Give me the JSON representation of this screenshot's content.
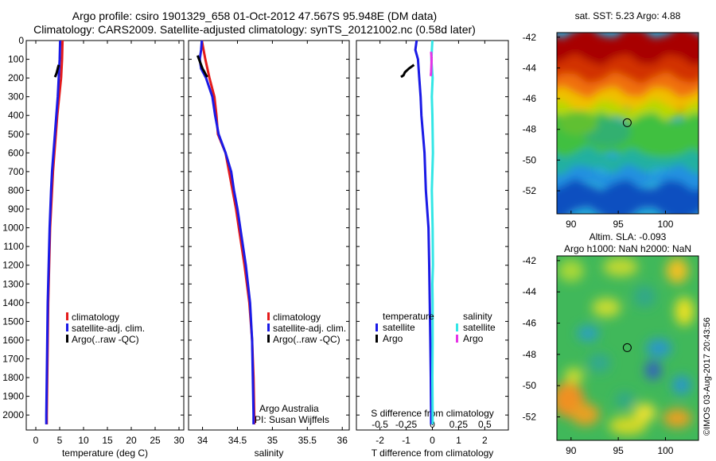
{
  "title_line1": "Argo profile: csiro 1901329_658 01-Oct-2012 47.567S 95.948E (DM data)",
  "title_line2": "Climatology: CARS2009. Satellite-adjusted climatology: synTS_20121002.nc (0.58d later)",
  "map1_title": "sat. SST: 5.23 Argo: 4.88",
  "map2_title1": "Altim. SLA: -0.093",
  "map2_title2": "Argo h1000: NaN h2000: NaN",
  "credit": "©IMOS 03-Aug-2017 20:43:56",
  "note1": "Argo Australia",
  "note2": "PI: Susan Wijffels",
  "colors": {
    "climatology": "#e41b1b",
    "satellite": "#1a1ae6",
    "argo": "#000000",
    "sal_sat": "#33e6e6",
    "sal_argo": "#e633e6"
  },
  "chart_data": [
    {
      "type": "line",
      "xlabel": "temperature (deg C)",
      "ylabel": "",
      "xlim": [
        -2,
        31
      ],
      "ylim": [
        2080,
        0
      ],
      "xticks": [
        0,
        5,
        10,
        15,
        20,
        25,
        30
      ],
      "yticks": [
        0,
        100,
        200,
        300,
        400,
        500,
        600,
        700,
        800,
        900,
        1000,
        1100,
        1200,
        1300,
        1400,
        1500,
        1600,
        1700,
        1800,
        1900,
        2000
      ],
      "legend": [
        "climatology",
        "satellite-adj. clim.",
        "Argo(..raw -QC)"
      ],
      "series": [
        {
          "name": "climatology",
          "color": "#e41b1b",
          "depth": [
            0,
            100,
            200,
            300,
            400,
            500,
            600,
            700,
            800,
            1000,
            1200,
            1400,
            1600,
            1800,
            2000,
            2050
          ],
          "values": [
            5.6,
            5.5,
            5.3,
            4.9,
            4.5,
            4.2,
            3.9,
            3.6,
            3.4,
            3.0,
            2.8,
            2.6,
            2.5,
            2.4,
            2.3,
            2.3
          ]
        },
        {
          "name": "satellite-adj. clim.",
          "color": "#1a1ae6",
          "depth": [
            0,
            100,
            200,
            300,
            400,
            500,
            600,
            700,
            800,
            1000,
            1200,
            1400,
            1600,
            1800,
            2000,
            2050
          ],
          "values": [
            5.1,
            5.0,
            4.8,
            4.6,
            4.3,
            4.0,
            3.7,
            3.4,
            3.2,
            2.9,
            2.7,
            2.5,
            2.4,
            2.3,
            2.2,
            2.2
          ]
        },
        {
          "name": "Argo(..raw -QC)",
          "color": "#000000",
          "depth": [
            130,
            150,
            170,
            185,
            195
          ],
          "values": [
            4.8,
            4.6,
            4.4,
            4.2,
            4.0
          ]
        }
      ]
    },
    {
      "type": "line",
      "xlabel": "salinity",
      "xlim": [
        33.8,
        36.1
      ],
      "ylim": [
        2080,
        0
      ],
      "xticks": [
        34,
        34.5,
        35,
        35.5,
        36
      ],
      "legend": [
        "climatology",
        "satellite-adj. clim.",
        "Argo(..raw -QC)"
      ],
      "series": [
        {
          "name": "climatology",
          "color": "#e41b1b",
          "depth": [
            0,
            100,
            200,
            300,
            400,
            500,
            600,
            700,
            800,
            900,
            1000,
            1200,
            1400,
            1600,
            1800,
            2000,
            2050
          ],
          "values": [
            33.99,
            34.04,
            34.1,
            34.17,
            34.2,
            34.22,
            34.33,
            34.38,
            34.43,
            34.48,
            34.52,
            34.6,
            34.67,
            34.71,
            34.73,
            34.74,
            34.74
          ]
        },
        {
          "name": "satellite-adj. clim.",
          "color": "#1a1ae6",
          "depth": [
            0,
            50,
            100,
            150,
            200,
            300,
            400,
            500,
            600,
            700,
            800,
            900,
            1000,
            1200,
            1400,
            1600,
            1800,
            2000,
            2050
          ],
          "values": [
            33.99,
            33.98,
            33.96,
            33.98,
            34.05,
            34.14,
            34.18,
            34.23,
            34.33,
            34.41,
            34.45,
            34.5,
            34.54,
            34.62,
            34.68,
            34.71,
            34.72,
            34.73,
            34.73
          ]
        },
        {
          "name": "Argo(..raw -QC)",
          "color": "#000000",
          "depth": [
            80,
            100,
            120,
            150,
            170,
            185,
            195
          ],
          "values": [
            33.93,
            33.95,
            33.97,
            34.0,
            34.03,
            34.05,
            34.07
          ]
        }
      ]
    },
    {
      "type": "line",
      "xlabel": "T difference from climatology",
      "x2label": "S difference from climatology",
      "xlim": [
        -2.9,
        2.9
      ],
      "ylim": [
        2080,
        0
      ],
      "xticks": [
        -2,
        -1,
        0,
        1,
        2
      ],
      "x2ticks": [
        "-0.5",
        "-0.25",
        "0",
        "0.25",
        "0.5"
      ],
      "legend_titles": [
        "temperature",
        "salinity"
      ],
      "legend_temp": [
        "satellite",
        "Argo"
      ],
      "legend_sal": [
        "satellite",
        "Argo"
      ],
      "series": [
        {
          "name": "temperature satellite",
          "color": "#1a1ae6",
          "depth": [
            0,
            50,
            100,
            200,
            300,
            400,
            600,
            800,
            1000,
            1200,
            1400,
            1600,
            1800,
            2000,
            2050
          ],
          "values": [
            -0.6,
            -0.65,
            -0.55,
            -0.5,
            -0.45,
            -0.42,
            -0.3,
            -0.25,
            -0.15,
            -0.12,
            -0.1,
            -0.08,
            -0.06,
            -0.05,
            -0.05
          ]
        },
        {
          "name": "salinity satellite",
          "color": "#33e6e6",
          "depth": [
            0,
            100,
            200,
            300,
            400,
            600,
            800,
            1000,
            1200,
            1300,
            1400,
            1600,
            1800,
            2000,
            2050
          ],
          "values": [
            0.0,
            -0.04,
            0.01,
            -0.02,
            0.0,
            0.02,
            -0.02,
            0.01,
            0.02,
            0.0,
            0.01,
            0.01,
            0.0,
            0.01,
            0.01
          ]
        },
        {
          "name": "temperature Argo",
          "color": "#000000",
          "depth": [
            130,
            150,
            170,
            185,
            195
          ],
          "values": [
            -0.7,
            -0.9,
            -1.05,
            -1.1,
            -1.2
          ]
        },
        {
          "name": "salinity Argo",
          "color": "#e633e6",
          "depth": [
            60,
            100,
            140,
            170,
            190
          ],
          "values": [
            -0.05,
            -0.03,
            -0.04,
            -0.05,
            -0.06
          ]
        }
      ]
    },
    {
      "type": "heatmap",
      "title": "sat. SST: 5.23 Argo: 4.88",
      "xlim": [
        88.5,
        103.5
      ],
      "ylim": [
        -53.5,
        -41.7
      ],
      "xticks": [
        90,
        95,
        100
      ],
      "yticks": [
        -42,
        -44,
        -46,
        -48,
        -50,
        -52
      ],
      "marker": {
        "lon": 95.95,
        "lat": -47.57
      }
    },
    {
      "type": "heatmap",
      "title": "Altim. SLA: -0.093",
      "xlim": [
        88.5,
        103.5
      ],
      "ylim": [
        -53.5,
        -41.7
      ],
      "xticks": [
        90,
        95,
        100
      ],
      "yticks": [
        -42,
        -44,
        -46,
        -48,
        -50,
        -52
      ],
      "marker": {
        "lon": 95.95,
        "lat": -47.57
      }
    }
  ]
}
